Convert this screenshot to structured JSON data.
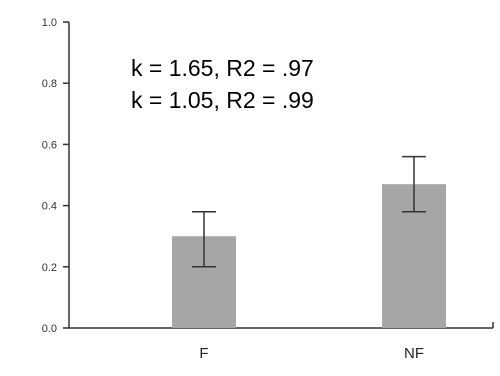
{
  "chart_data": {
    "type": "bar",
    "categories": [
      "F",
      "NF"
    ],
    "values": [
      0.3,
      0.47
    ],
    "error_bars": [
      {
        "low": 0.2,
        "high": 0.38
      },
      {
        "low": 0.38,
        "high": 0.56
      }
    ],
    "ylim": [
      0.0,
      1.0
    ],
    "yticks": [
      "0.0",
      "0.2",
      "0.4",
      "0.6",
      "0.8",
      "1.0"
    ],
    "ytick_values": [
      0.0,
      0.2,
      0.4,
      0.6,
      0.8,
      1.0
    ],
    "annotations": [
      "k = 1.65, R2 = .97",
      "k = 1.05, R2 = .99"
    ],
    "grid": false,
    "bar_color": "#a6a6a6",
    "axis_color": "#333333"
  }
}
